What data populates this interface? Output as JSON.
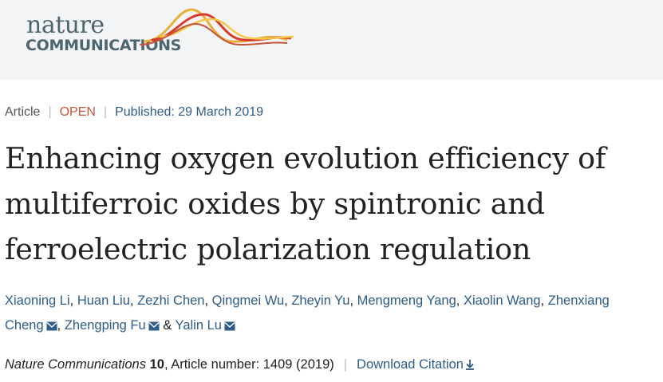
{
  "logo": {
    "line1": "nature",
    "line2": "COMMUNICATIONS"
  },
  "meta": {
    "type": "Article",
    "access": "OPEN",
    "published": "Published: 29 March 2019"
  },
  "title": "Enhancing oxygen evolution efficiency of multiferroic oxides by spintronic and ferroelectric polarization regulation",
  "authors": {
    "a1": "Xiaoning Li",
    "a2": "Huan Liu",
    "a3": "Zezhi Chen",
    "a4": "Qingmei Wu",
    "a5": "Zheyin Yu",
    "a6": "Mengmeng Yang",
    "a7": "Xiaolin Wang",
    "a8a": "Zhenxiang",
    "a8b": "Cheng",
    "a9": "Zhengping Fu",
    "a10": "Yalin Lu",
    "comma": ",",
    "amp": "&"
  },
  "footer": {
    "journal": "Nature Communications",
    "volume": "10",
    "article": ", Article number: 1409 (2019)",
    "download": "Download Citation"
  },
  "colors": {
    "link": "#2d5c88",
    "open": "#c4553a",
    "logo": "#4d6570",
    "header_bg": "#f3f4f5"
  }
}
